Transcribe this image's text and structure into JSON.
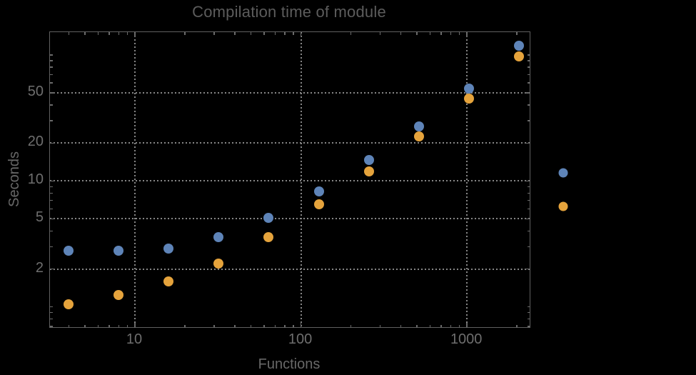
{
  "title": "Compilation time of module",
  "colors": {
    "background": "#000000",
    "frame": "#606060",
    "grid": "#868686",
    "tick_marks": "#6a6a6a",
    "title_text": "#5c5c5c",
    "tick_label_text": "#6e6e6e",
    "axis_label_text": "#686868",
    "series_blue": "#5e84b8",
    "series_orange": "#e5a33c"
  },
  "chart_data": {
    "type": "scatter",
    "title": "Compilation time of module",
    "xlabel": "Functions",
    "ylabel": "Seconds",
    "x_scale": "log",
    "y_scale": "log",
    "xlim": [
      3.08,
      2385
    ],
    "ylim": [
      0.69,
      152
    ],
    "grid": "dotted",
    "x": [
      4,
      8,
      16,
      32,
      64,
      128,
      256,
      512,
      1024,
      2048
    ],
    "series": [
      {
        "name": "series-1-blue",
        "color": "#5e84b8",
        "values": [
          2.8,
          2.8,
          2.9,
          3.6,
          5.1,
          8.3,
          14.6,
          27,
          54,
          118
        ]
      },
      {
        "name": "series-2-orange",
        "color": "#e5a33c",
        "values": [
          1.05,
          1.25,
          1.6,
          2.2,
          3.6,
          6.5,
          11.9,
          22.7,
          45,
          97
        ]
      }
    ],
    "x_ticks_labeled": [
      10,
      100,
      1000
    ],
    "x_tick_labels": [
      "10",
      "100",
      "1000"
    ],
    "y_ticks_labeled": [
      2,
      5,
      10,
      20,
      50
    ],
    "y_tick_labels": [
      "2",
      "5",
      "10",
      "20",
      "50"
    ],
    "x_ticks_minor": [
      4,
      5,
      6,
      7,
      8,
      9,
      20,
      30,
      40,
      50,
      60,
      70,
      80,
      90,
      200,
      300,
      400,
      500,
      600,
      700,
      800,
      900,
      2000
    ],
    "y_ticks_minor": [
      0.7,
      0.8,
      0.9,
      1,
      3,
      4,
      6,
      7,
      8,
      9,
      30,
      40,
      60,
      70,
      80,
      90,
      100
    ],
    "legend": {
      "position": "right-of-plot",
      "entries": [
        {
          "marker_color": "#5e84b8"
        },
        {
          "marker_color": "#e5a33c"
        }
      ]
    }
  }
}
